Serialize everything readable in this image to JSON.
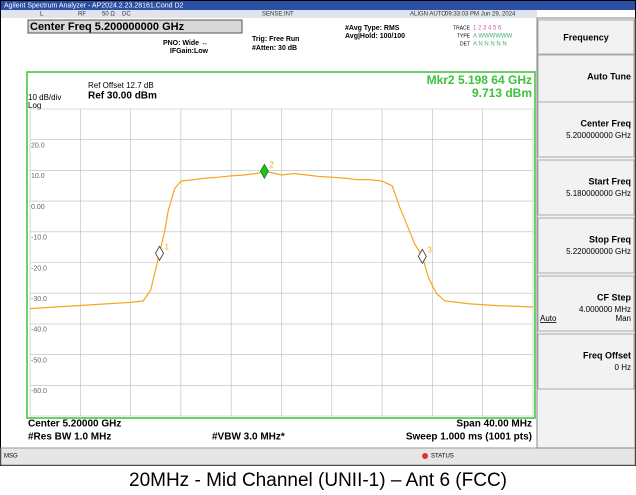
{
  "screen": {
    "title_bar": "Agilent Spectrum Analyzer - AP2024.2.23.28161,Cond D2",
    "status_row": [
      "L",
      "RF",
      "50 Ω",
      "DC",
      "SENSE:INT",
      "ALIGN AUTO",
      "09:33:03 PM Jun 29, 2024"
    ],
    "center_freq": "Center Freq 5.200000000 GHz",
    "pno": "PNO: Wide ↔",
    "ifgain": "IFGain:Low",
    "trig": "Trig: Free Run",
    "atten": "#Atten: 30 dB",
    "avg_type": "#Avg Type: RMS",
    "avg_hold": "Avg|Hold: 100/100",
    "trace_rows": [
      [
        "TRACE",
        "1 2 3 4 5 6"
      ],
      [
        "TYPE",
        "A WWWWWW"
      ],
      [
        "DET",
        "A N N N N N"
      ]
    ],
    "ref_offset": "Ref Offset 12.7 dB",
    "ref": "Ref 30.00 dBm",
    "scale": "10 dB/div",
    "log": "Log",
    "marker_readout": "Mkr2 5.198 64 GHz",
    "marker_value": "9.713 dBm",
    "center": "Center 5.20000 GHz",
    "span": "Span 40.00 MHz",
    "res_bw": "#Res BW 1.0 MHz",
    "vbw": "#VBW 3.0 MHz*",
    "sweep": "Sweep  1.000 ms (1001 pts)",
    "msg": "MSG",
    "status": "STATUS",
    "softkeys": [
      {
        "label": "Frequency"
      },
      {
        "label": "Auto Tune"
      },
      {
        "label": "Center Freq",
        "value": "5.200000000 GHz"
      },
      {
        "label": "Start Freq",
        "value": "5.180000000 GHz"
      },
      {
        "label": "Stop Freq",
        "value": "5.220000000 GHz"
      },
      {
        "label": "CF Step",
        "value": "4.000000 MHz",
        "left": "Auto",
        "right": "Man"
      },
      {
        "label": "Freq Offset",
        "value": "0 Hz"
      }
    ],
    "caption": "20MHz - Mid Channel (UNII-1) – Ant 6 (FCC)"
  },
  "chart_data": {
    "type": "line",
    "color": "#f5a623",
    "xlim": [
      5180,
      5220
    ],
    "ylim": [
      -70,
      30
    ],
    "xticks": [
      5180,
      5184,
      5188,
      5192,
      5196,
      5200,
      5204,
      5208,
      5212,
      5216,
      5220
    ],
    "yticks": [
      {
        "value": 20,
        "label": "20.0"
      },
      {
        "value": 10,
        "label": "10.0"
      },
      {
        "value": 0,
        "label": "0.00"
      },
      {
        "value": -10,
        "label": "-10.0"
      },
      {
        "value": -20,
        "label": "-20.0"
      },
      {
        "value": -30,
        "label": "-30.0"
      },
      {
        "value": -40,
        "label": "-40.0"
      },
      {
        "value": -50,
        "label": "-50.0"
      },
      {
        "value": -60,
        "label": "-60.0"
      }
    ],
    "x": [
      5180,
      5182,
      5184,
      5186,
      5188,
      5189,
      5189.6,
      5190,
      5190.3,
      5190.7,
      5191,
      5191.5,
      5192,
      5193,
      5194,
      5195,
      5196,
      5197,
      5198,
      5198.64,
      5199.5,
      5200,
      5201,
      5202,
      5203,
      5204,
      5205,
      5206,
      5207,
      5208,
      5208.8,
      5209.4,
      5210,
      5210.6,
      5211.2,
      5211.7,
      5212.3,
      5213,
      5215,
      5217,
      5220
    ],
    "values": [
      -35,
      -34.5,
      -34,
      -33.5,
      -33,
      -32.5,
      -29,
      -22,
      -17,
      -10,
      -3,
      4,
      6.5,
      7,
      7.5,
      7.8,
      8.2,
      8.5,
      9,
      9.713,
      9,
      8.5,
      9,
      8.5,
      8,
      7.8,
      7.5,
      7,
      7,
      6.5,
      5,
      -2,
      -8,
      -14,
      -18,
      -25,
      -30,
      -32.5,
      -33.5,
      -34,
      -34.5
    ],
    "markers": [
      {
        "label": "1",
        "x": 5190.3,
        "y": -17
      },
      {
        "label": "2",
        "x": 5198.64,
        "y": 9.713,
        "color": "#22c022"
      },
      {
        "label": "3",
        "x": 5211.2,
        "y": -18
      }
    ]
  }
}
